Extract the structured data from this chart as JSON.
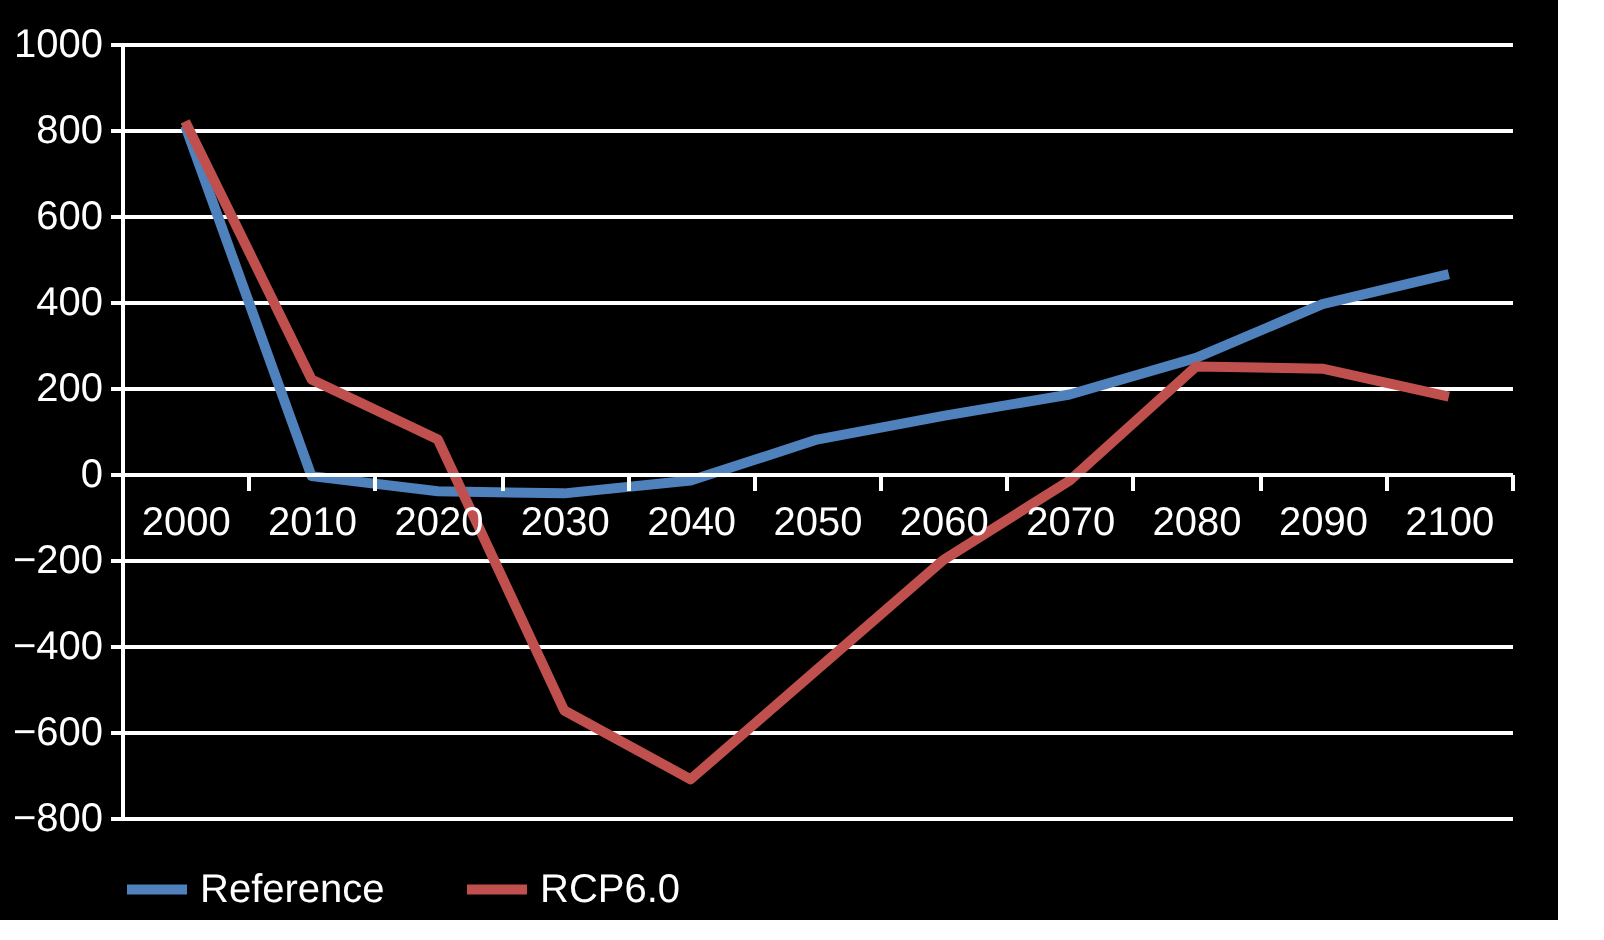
{
  "chart_data": {
    "type": "line",
    "categories": [
      "2000",
      "2010",
      "2020",
      "2030",
      "2040",
      "2050",
      "2060",
      "2070",
      "2080",
      "2090",
      "2100"
    ],
    "series": [
      {
        "name": "Reference",
        "color": "#4f81bd",
        "values": [
          810,
          -5,
          -40,
          -45,
          -15,
          80,
          135,
          185,
          270,
          395,
          465
        ]
      },
      {
        "name": "RCP6.0",
        "color": "#c0504d",
        "values": [
          820,
          220,
          80,
          -550,
          -710,
          -455,
          -200,
          -15,
          250,
          245,
          180
        ]
      }
    ],
    "ylim": [
      -800,
      1000
    ],
    "yticks": [
      -800,
      -600,
      -400,
      -200,
      0,
      200,
      400,
      600,
      800,
      1000
    ],
    "grid": "y",
    "legend": "bottom",
    "marker": "none",
    "line_style": "solid"
  }
}
